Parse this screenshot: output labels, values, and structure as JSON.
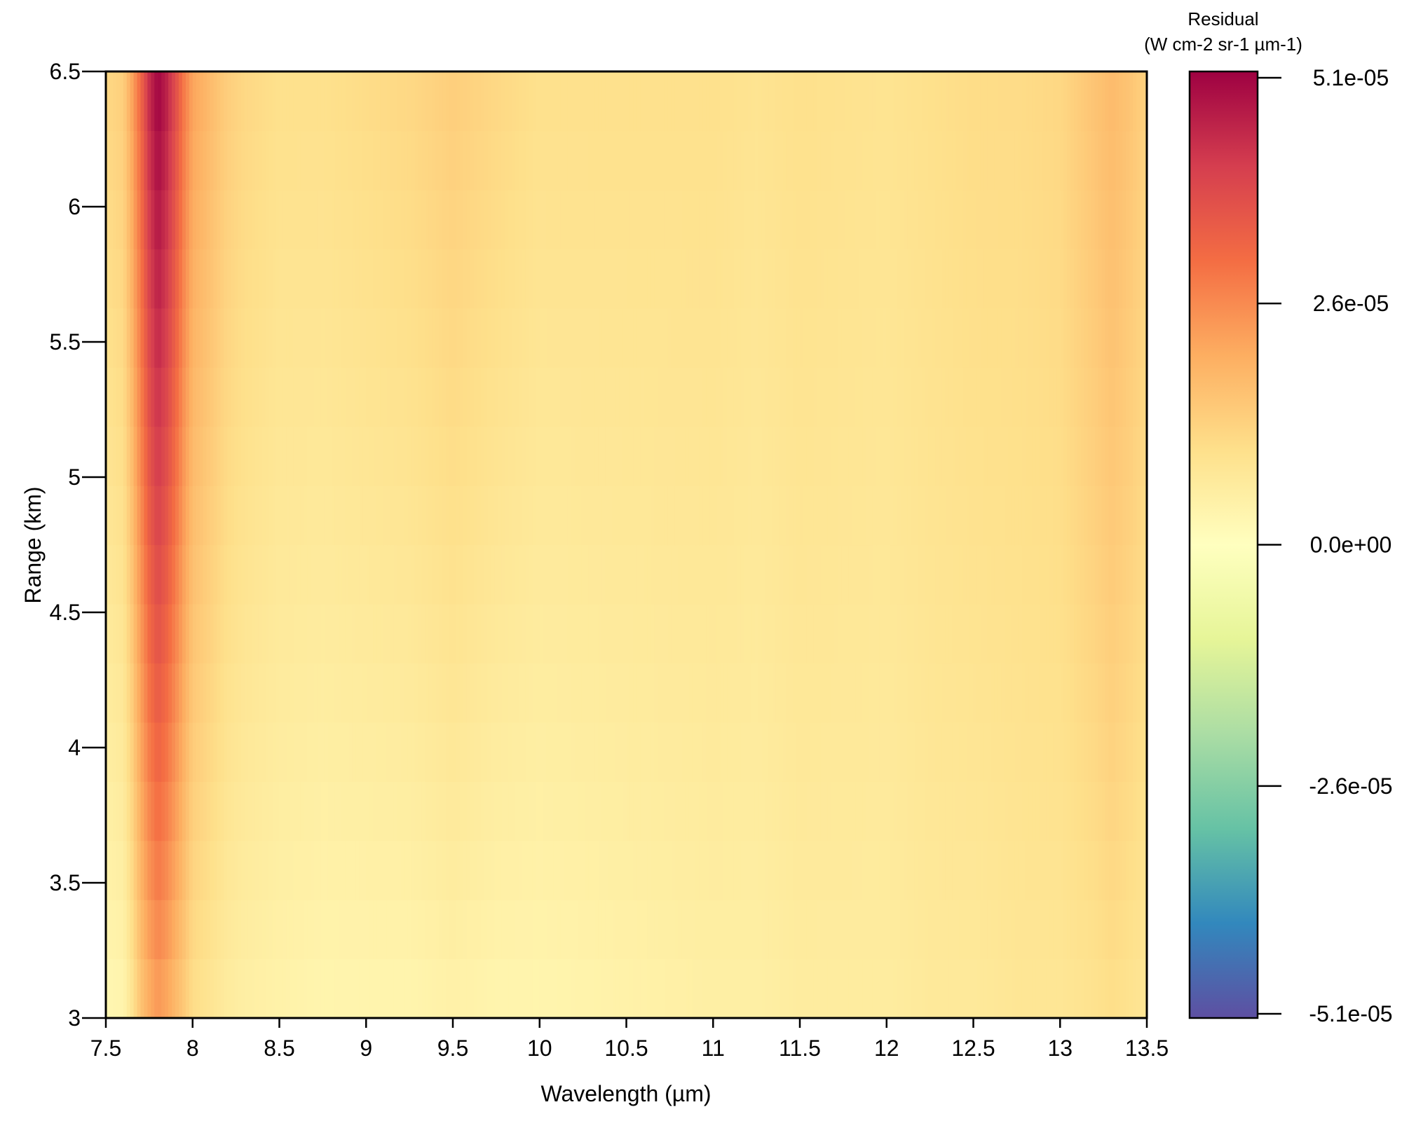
{
  "chart_data": {
    "type": "heatmap",
    "xlabel": "Wavelength (µm)",
    "ylabel": "Range (km)",
    "xlim": [
      7.5,
      13.5
    ],
    "ylim": [
      3,
      6.5
    ],
    "x_ticks": [
      "7.5",
      "8",
      "8.5",
      "9",
      "9.5",
      "10",
      "10.5",
      "11",
      "11.5",
      "12",
      "12.5",
      "13",
      "13.5"
    ],
    "y_ticks": [
      "3",
      "3.5",
      "4",
      "4.5",
      "5",
      "5.5",
      "6",
      "6.5"
    ],
    "colorbar": {
      "title_line1": "Residual",
      "title_line2": "(W cm-2 sr-1  µm-1)",
      "min": -5.1e-05,
      "max": 5.1e-05,
      "ticks": [
        {
          "value": 5.1e-05,
          "label": "5.1e-05"
        },
        {
          "value": 2.6e-05,
          "label": "2.6e-05"
        },
        {
          "value": 0,
          "label": "0.0e+00"
        },
        {
          "value": -2.6e-05,
          "label": "-2.6e-05"
        },
        {
          "value": -5.1e-05,
          "label": "-5.1e-05"
        }
      ],
      "colormap": "Spectral (reversed)",
      "colors": [
        "#5e4fa2",
        "#3288bd",
        "#66c2a5",
        "#abdda4",
        "#e6f598",
        "#ffffbf",
        "#fee08b",
        "#fdae61",
        "#f46d43",
        "#d53e4f",
        "#9e0142"
      ]
    },
    "wavelength_profile": {
      "x": [
        7.5,
        7.6,
        7.65,
        7.7,
        7.75,
        7.8,
        7.85,
        7.9,
        7.95,
        8.0,
        8.1,
        8.2,
        8.3,
        8.5,
        8.75,
        9.0,
        9.25,
        9.5,
        9.75,
        10.0,
        10.5,
        11.0,
        11.25,
        11.5,
        12.0,
        12.25,
        12.5,
        12.75,
        13.0,
        13.2,
        13.3,
        13.4,
        13.5
      ],
      "residual_at_top": [
        1.2e-05,
        1.4e-05,
        2.2e-05,
        3.2e-05,
        4.4e-05,
        5.1e-05,
        4.6e-05,
        3.8e-05,
        2.9e-05,
        2.2e-05,
        1.8e-05,
        1.4e-05,
        1.2e-05,
        1e-05,
        1e-05,
        1.1e-05,
        1.2e-05,
        1.4e-05,
        1.2e-05,
        1e-05,
        1e-05,
        1e-05,
        9e-06,
        1e-05,
        9e-06,
        1e-05,
        1.1e-05,
        1.1e-05,
        1.2e-05,
        1.6e-05,
        1.8e-05,
        1.6e-05,
        1.3e-05
      ],
      "residual_at_bottom": [
        2e-06,
        3e-06,
        8e-06,
        1.5e-05,
        1.9e-05,
        2.2e-05,
        2e-05,
        1.7e-05,
        1.4e-05,
        1e-05,
        8e-06,
        6e-06,
        5e-06,
        4e-06,
        3e-06,
        3e-06,
        3e-06,
        4e-06,
        3e-06,
        3e-06,
        4e-06,
        5e-06,
        5e-06,
        6e-06,
        6e-06,
        7e-06,
        7e-06,
        8e-06,
        8e-06,
        9e-06,
        1e-05,
        9e-06,
        8e-06
      ]
    },
    "grid": false,
    "legend": "colorbar-right"
  }
}
